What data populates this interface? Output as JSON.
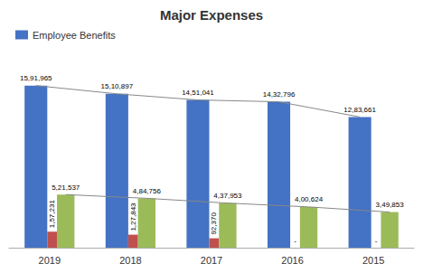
{
  "chart_data": {
    "type": "bar",
    "title": "Major Expenses",
    "categories": [
      "2019",
      "2018",
      "2017",
      "2016",
      "2015"
    ],
    "series": [
      {
        "name": "Employee Benefits",
        "color": "#4472C4",
        "values": [
          1591965,
          1510897,
          1451041,
          1432796,
          1283661
        ],
        "value_labels": [
          "15,91,965",
          "15,10,897",
          "14,51,041",
          "14,32,796",
          "12,83,661"
        ]
      },
      {
        "color": "#C0504D",
        "values": [
          157231,
          127843,
          92370,
          0,
          0
        ],
        "value_labels": [
          "1,57,231",
          "1,27,843",
          "92,370",
          "-",
          "-"
        ]
      },
      {
        "color": "#9BBB59",
        "values": [
          521537,
          484756,
          437953,
          400624,
          349853
        ],
        "value_labels": [
          "5,21,537",
          "4,84,756",
          "4,37,953",
          "4,00,624",
          "3,49,853"
        ]
      },
      {
        "type": "line",
        "color": "#888888",
        "values": [
          1591965,
          1510897,
          1451041,
          1432796,
          1283661
        ]
      },
      {
        "type": "line",
        "color": "#888888",
        "values": [
          521537,
          484756,
          437953,
          400624,
          349853
        ]
      }
    ],
    "ylim": [
      0,
      1900000
    ],
    "grid": false,
    "legend": "upper left",
    "data_labels": true,
    "tick_labels": "x"
  }
}
